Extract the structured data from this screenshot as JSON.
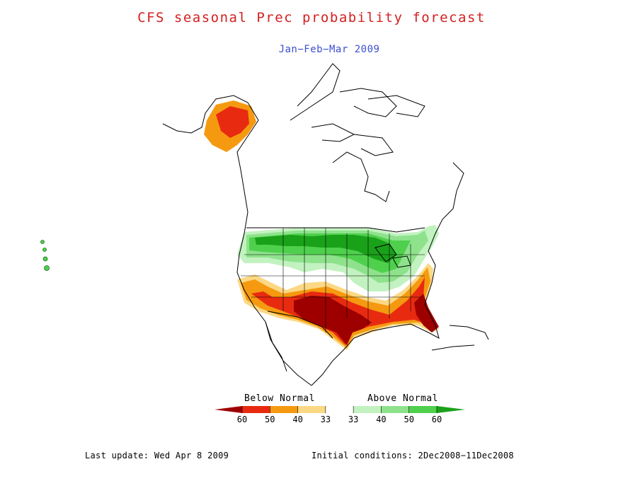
{
  "title": "CFS seasonal Prec probability forecast",
  "subtitle": "Jan−Feb−Mar 2009",
  "legend": {
    "below_label": "Below Normal",
    "above_label": "Above Normal",
    "ticks": [
      "60",
      "50",
      "40",
      "33",
      "33",
      "40",
      "50",
      "60"
    ],
    "colors": [
      "#9e0000",
      "#e82b10",
      "#f59a10",
      "#fbd884",
      "#ffffff",
      "#c2f2c0",
      "#8ee28c",
      "#4fd04d",
      "#1aa11a"
    ]
  },
  "footer": {
    "last_update": "Last update: Wed Apr 8 2009",
    "initial_conditions": "Initial conditions: 2Dec2008−11Dec2008"
  }
}
